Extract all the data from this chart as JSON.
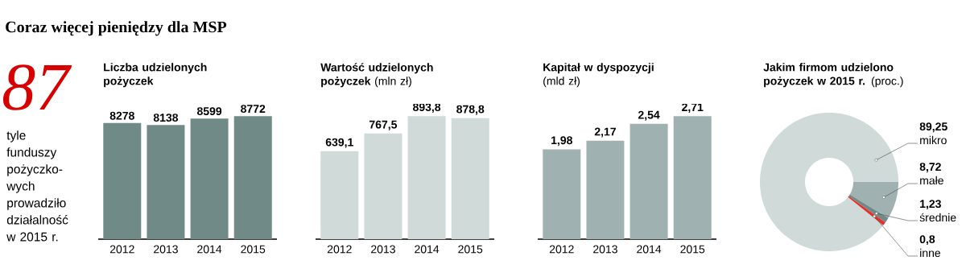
{
  "chart_data": [
    {
      "type": "other",
      "title": "Coraz więcej pieniędzy dla MSP",
      "annotations": [
        "87",
        "tyle funduszy pożyczko-wych prowadziło działalność w 2015 r."
      ]
    },
    {
      "type": "bar",
      "title": "Liczba udzielonych pożyczek",
      "categories": [
        "2012",
        "2013",
        "2014",
        "2015"
      ],
      "values": [
        8278,
        8138,
        8599,
        8772
      ],
      "color": "#6f8a87",
      "data_labels": true,
      "tick_labels": "x"
    },
    {
      "type": "bar",
      "title": "**Wartość udzielonych pożyczek** (mln zł)",
      "categories": [
        "2012",
        "2013",
        "2014",
        "2015"
      ],
      "values": [
        639.1,
        767.5,
        893.8,
        878.8
      ],
      "value_labels": [
        "639,1",
        "767,5",
        "893,8",
        "878,8"
      ],
      "color": "#cfdad9",
      "tick_labels": "x"
    },
    {
      "type": "bar",
      "title": "**Kapitał w dyspozycji** (mld zł)",
      "categories": [
        "2012",
        "2013",
        "2014",
        "2015"
      ],
      "values": [
        1.98,
        2.17,
        2.54,
        2.71
      ],
      "value_labels": [
        "1,98",
        "2,17",
        "2,54",
        "2,71"
      ],
      "color": "#9fb2b1",
      "tick_labels": "x"
    },
    {
      "type": "donut",
      "title": "**Jakim firmom udzielono pożyczek w 2015 r.** (proc.)",
      "categories": [
        "mikro",
        "małe",
        "średnie",
        "inne"
      ],
      "values": [
        89.25,
        8.72,
        1.23,
        0.8
      ],
      "value_labels": [
        "89,25",
        "8,72",
        "1,23",
        "0,8"
      ],
      "colors": [
        "#cfdad9",
        "#9fb2b1",
        "#6f8a87",
        "#e3312b"
      ]
    }
  ]
}
